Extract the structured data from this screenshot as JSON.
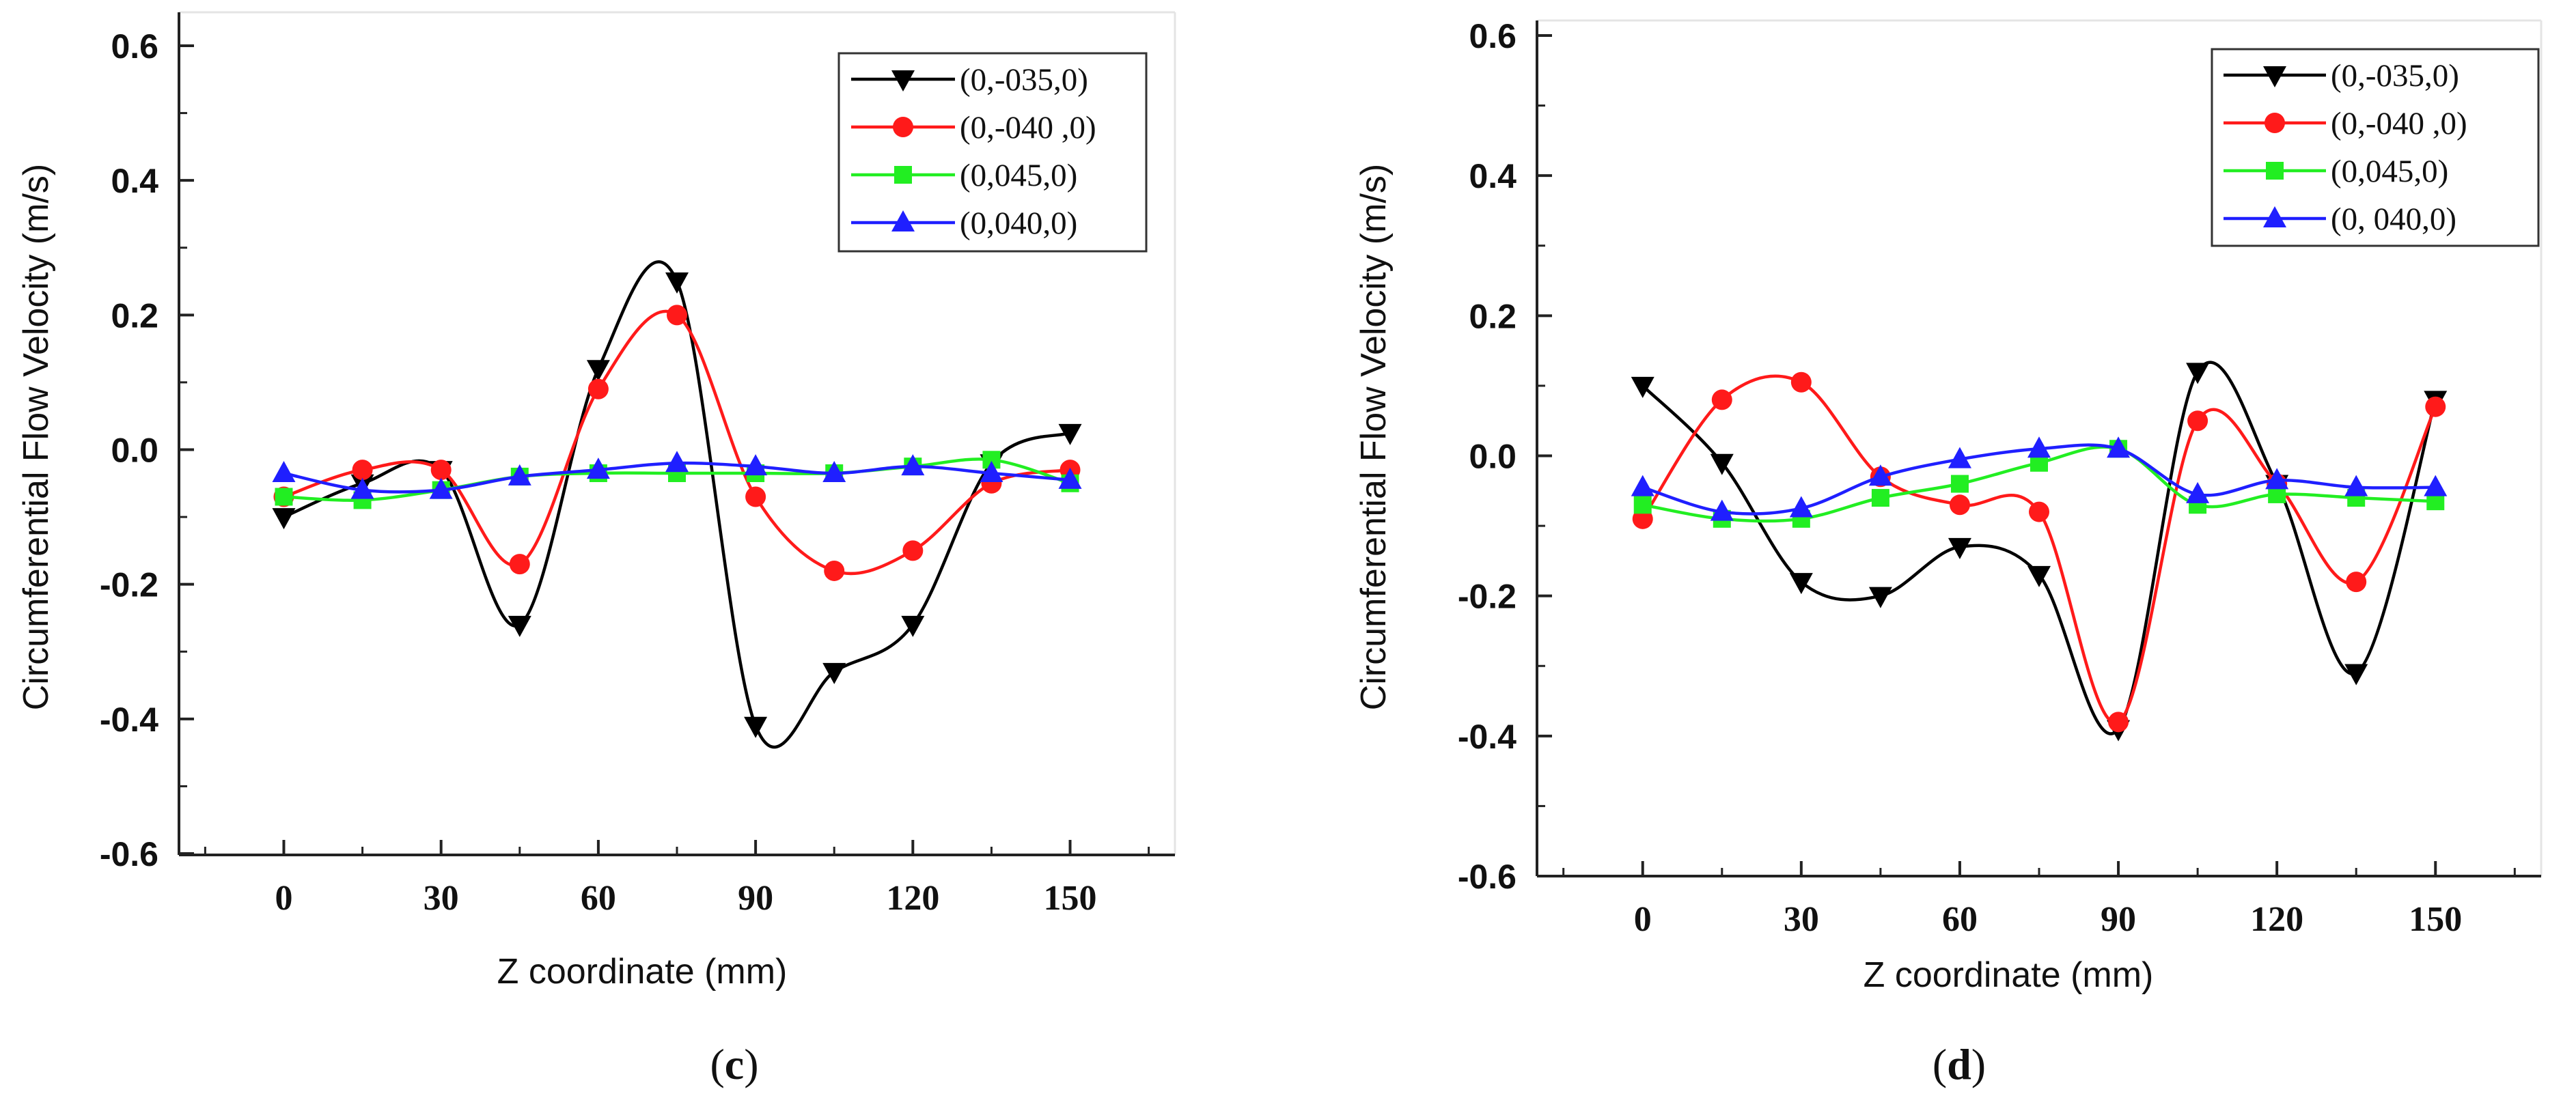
{
  "chart_data": [
    {
      "type": "line",
      "caption_letter": "c",
      "title": "",
      "xlabel": "Z coordinate (mm)",
      "ylabel": "Circumferential Flow Velocity  (m/s)",
      "xlim": [
        -20,
        170
      ],
      "ylim": [
        -0.6,
        0.6
      ],
      "xticks": [
        0,
        30,
        60,
        90,
        120,
        150
      ],
      "xtick_labels": [
        "0",
        "30",
        "60",
        "90",
        "120",
        "150"
      ],
      "yticks": [
        0.6,
        0.4,
        0.2,
        0.0,
        -0.2,
        -0.4,
        -0.6
      ],
      "ytick_labels": [
        "0.6",
        "0.4",
        "0.2",
        "0.0",
        "-0.2",
        "-0.4",
        "-0.6"
      ],
      "legend_position": "top-right",
      "x": [
        0,
        15,
        30,
        45,
        60,
        75,
        90,
        105,
        120,
        135,
        150
      ],
      "series": [
        {
          "name": "(0,-035,0)",
          "color": "#000000",
          "marker": "triangle-down",
          "values": [
            -0.1,
            -0.05,
            -0.03,
            -0.26,
            0.12,
            0.25,
            -0.41,
            -0.33,
            -0.26,
            -0.02,
            0.025
          ]
        },
        {
          "name": "(0,-040 ,0)",
          "color": "#ff1a1a",
          "marker": "circle",
          "values": [
            -0.07,
            -0.03,
            -0.03,
            -0.17,
            0.09,
            0.2,
            -0.07,
            -0.18,
            -0.15,
            -0.05,
            -0.03
          ]
        },
        {
          "name": "(0,045,0)",
          "color": "#22ee22",
          "marker": "square",
          "values": [
            -0.07,
            -0.075,
            -0.06,
            -0.04,
            -0.035,
            -0.035,
            -0.035,
            -0.035,
            -0.025,
            -0.015,
            -0.05
          ]
        },
        {
          "name": "(0,040,0)",
          "color": "#1f1fff",
          "marker": "triangle-up",
          "values": [
            -0.035,
            -0.06,
            -0.06,
            -0.04,
            -0.03,
            -0.02,
            -0.025,
            -0.035,
            -0.025,
            -0.035,
            -0.045
          ]
        }
      ]
    },
    {
      "type": "line",
      "caption_letter": "d",
      "title": "",
      "xlabel": "Z coordinate (mm)",
      "ylabel": "Circumferential Flow Velocity  (m/s)",
      "xlim": [
        -20,
        170
      ],
      "ylim": [
        -0.6,
        0.6
      ],
      "xticks": [
        0,
        30,
        60,
        90,
        120,
        150
      ],
      "xtick_labels": [
        "0",
        "30",
        "60",
        "90",
        "120",
        "150"
      ],
      "yticks": [
        0.6,
        0.4,
        0.2,
        0.0,
        -0.2,
        -0.4,
        -0.6
      ],
      "ytick_labels": [
        "0.6",
        "0.4",
        "0.2",
        "0.0",
        "-0.2",
        "-0.4",
        "-0.6"
      ],
      "legend_position": "top-right",
      "x": [
        0,
        15,
        30,
        45,
        60,
        75,
        90,
        105,
        120,
        135,
        150
      ],
      "series": [
        {
          "name": "(0,-035,0)",
          "color": "#000000",
          "marker": "triangle-down",
          "values": [
            0.1,
            -0.01,
            -0.18,
            -0.2,
            -0.13,
            -0.17,
            -0.39,
            0.12,
            -0.04,
            -0.31,
            0.08
          ]
        },
        {
          "name": "(0,-040 ,0)",
          "color": "#ff1a1a",
          "marker": "circle",
          "values": [
            -0.09,
            0.08,
            0.105,
            -0.03,
            -0.07,
            -0.08,
            -0.38,
            0.05,
            -0.04,
            -0.18,
            0.07
          ]
        },
        {
          "name": "(0,045,0)",
          "color": "#22ee22",
          "marker": "square",
          "values": [
            -0.07,
            -0.09,
            -0.09,
            -0.06,
            -0.04,
            -0.01,
            0.01,
            -0.07,
            -0.055,
            -0.06,
            -0.065
          ]
        },
        {
          "name": "(0, 040,0)",
          "color": "#1f1fff",
          "marker": "triangle-up",
          "values": [
            -0.045,
            -0.08,
            -0.075,
            -0.03,
            -0.005,
            0.01,
            0.01,
            -0.055,
            -0.035,
            -0.045,
            -0.045
          ]
        }
      ]
    }
  ]
}
